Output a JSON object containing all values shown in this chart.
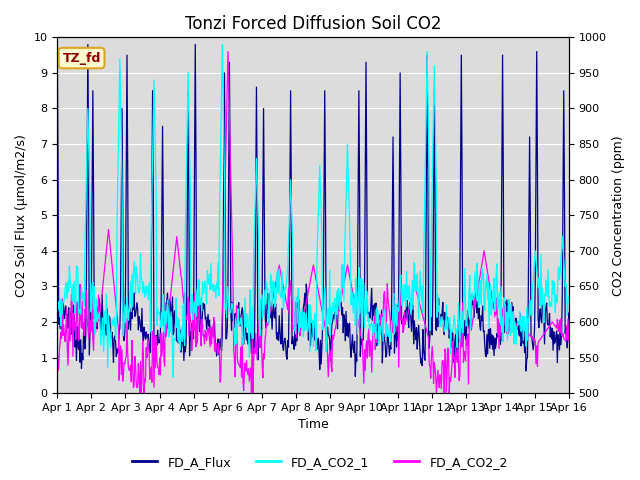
{
  "title": "Tonzi Forced Diffusion Soil CO2",
  "xlabel": "Time",
  "ylabel_left": "CO2 Soil Flux (μmol/m2/s)",
  "ylabel_right": "CO2 Concentration (ppm)",
  "ylim_left": [
    0.0,
    10.0
  ],
  "ylim_right": [
    500,
    1000
  ],
  "yticks_left": [
    0.0,
    1.0,
    2.0,
    3.0,
    4.0,
    5.0,
    6.0,
    7.0,
    8.0,
    9.0,
    10.0
  ],
  "yticks_right": [
    500,
    550,
    600,
    650,
    700,
    750,
    800,
    850,
    900,
    950,
    1000
  ],
  "xtick_labels": [
    "Apr 1",
    "Apr 2",
    "Apr 3",
    "Apr 4",
    "Apr 5",
    "Apr 6",
    "Apr 7",
    "Apr 8",
    "Apr 9",
    "Apr 10",
    "Apr 11",
    "Apr 12",
    "Apr 13",
    "Apr 14",
    "Apr 15",
    "Apr 16"
  ],
  "n_days": 15,
  "color_flux": "#00008B",
  "color_co2_1": "#00FFFF",
  "color_co2_2": "#FF00FF",
  "label_flux": "FD_A_Flux",
  "label_co2_1": "FD_A_CO2_1",
  "label_co2_2": "FD_A_CO2_2",
  "bg_color": "#DCDCDC",
  "annotation_text": "TZ_fd",
  "annotation_text_color": "#8B0000",
  "annotation_box_facecolor": "#FFFACD",
  "annotation_box_edgecolor": "#DAA520",
  "title_fontsize": 12,
  "axis_label_fontsize": 9,
  "tick_fontsize": 8,
  "legend_fontsize": 9,
  "line_width": 0.9
}
